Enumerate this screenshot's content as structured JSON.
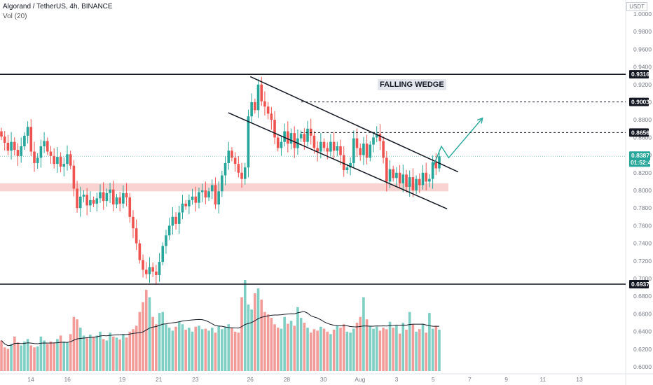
{
  "header": {
    "symbol_line": "Algorand / TetherUS, 4h, BINANCE",
    "volume_line": "Vol (20)"
  },
  "currency_label": "USDT",
  "annotation": "FALLING WEDGE",
  "colors": {
    "bull": "#26a69a",
    "bear": "#ef5350",
    "bull_volume": "#7fcfc5",
    "bear_volume": "#f29c9a",
    "support_zone": "#f8c8c6",
    "projection": "#26a69a",
    "current_price": "#26a69a",
    "level_tag": "#131722"
  },
  "chart_data": {
    "type": "candlestick",
    "pair": "ALGO/USDT",
    "y_axis": {
      "unit": "USDT",
      "ylim": [
        0.595,
        1.005
      ],
      "ticks": [
        "1.0000",
        "0.9800",
        "0.9600",
        "0.9400",
        "0.9200",
        "0.9000",
        "0.8800",
        "0.8600",
        "0.8400",
        "0.8200",
        "0.8000",
        "0.7800",
        "0.7600",
        "0.7400",
        "0.7200",
        "0.7000",
        "0.6800",
        "0.6600",
        "0.6400",
        "0.6200",
        "0.6000"
      ]
    },
    "x_axis": {
      "ticks": [
        "14",
        "16",
        "19",
        "21",
        "23",
        "26",
        "28",
        "30",
        "Aug",
        "3",
        "5",
        "7",
        "9",
        "11",
        "13"
      ]
    },
    "horizontal_levels": [
      {
        "price": 0.9316,
        "label": "0.9316",
        "style": "solid"
      },
      {
        "price": 0.9003,
        "label": "0.9003",
        "style": "dashed"
      },
      {
        "price": 0.8656,
        "label": "0.8656",
        "style": "dashed"
      },
      {
        "price": 0.6937,
        "label": "0.6937",
        "style": "solid"
      }
    ],
    "current_price": {
      "price": 0.8387,
      "label": "0.8387",
      "countdown": "01:52:43"
    },
    "support_zone": [
      0.799,
      0.808
    ],
    "wedge": {
      "upper": [
        [
          26.0,
          0.929
        ],
        [
          5.6,
          0.821
        ]
      ],
      "lower": [
        [
          24.8,
          0.888
        ],
        [
          5.0,
          0.779
        ]
      ]
    },
    "projection": [
      [
        5.0,
        0.827
      ],
      [
        5.45,
        0.85
      ],
      [
        5.85,
        0.837
      ],
      [
        7.7,
        0.882
      ]
    ],
    "closes": [
      0.861,
      0.854,
      0.845,
      0.855,
      0.846,
      0.839,
      0.85,
      0.862,
      0.872,
      0.844,
      0.831,
      0.837,
      0.85,
      0.856,
      0.844,
      0.839,
      0.83,
      0.838,
      0.827,
      0.83,
      0.841,
      0.828,
      0.802,
      0.78,
      0.793,
      0.795,
      0.783,
      0.789,
      0.785,
      0.791,
      0.798,
      0.788,
      0.797,
      0.801,
      0.784,
      0.792,
      0.785,
      0.797,
      0.792,
      0.77,
      0.757,
      0.74,
      0.721,
      0.71,
      0.705,
      0.713,
      0.708,
      0.704,
      0.719,
      0.737,
      0.749,
      0.76,
      0.77,
      0.762,
      0.775,
      0.785,
      0.782,
      0.789,
      0.793,
      0.786,
      0.798,
      0.8,
      0.792,
      0.799,
      0.806,
      0.784,
      0.799,
      0.817,
      0.831,
      0.845,
      0.837,
      0.83,
      0.82,
      0.813,
      0.826,
      0.884,
      0.9,
      0.891,
      0.92,
      0.901,
      0.895,
      0.887,
      0.88,
      0.86,
      0.848,
      0.855,
      0.867,
      0.853,
      0.865,
      0.848,
      0.859,
      0.864,
      0.855,
      0.87,
      0.862,
      0.848,
      0.844,
      0.855,
      0.848,
      0.844,
      0.855,
      0.845,
      0.85,
      0.84,
      0.823,
      0.826,
      0.831,
      0.859,
      0.848,
      0.84,
      0.853,
      0.837,
      0.852,
      0.86,
      0.864,
      0.856,
      0.837,
      0.81,
      0.824,
      0.814,
      0.82,
      0.808,
      0.818,
      0.804,
      0.815,
      0.8,
      0.813,
      0.806,
      0.82,
      0.81,
      0.813,
      0.832,
      0.825,
      0.8387
    ],
    "opens_note": "each candle opens at the previous close",
    "volume": [
      62,
      48,
      45,
      55,
      70,
      58,
      52,
      60,
      65,
      52,
      48,
      50,
      70,
      62,
      55,
      60,
      58,
      65,
      72,
      60,
      58,
      75,
      110,
      105,
      88,
      72,
      68,
      74,
      70,
      72,
      80,
      65,
      62,
      78,
      70,
      68,
      64,
      74,
      68,
      80,
      85,
      92,
      120,
      140,
      165,
      150,
      110,
      95,
      118,
      120,
      95,
      88,
      82,
      90,
      100,
      95,
      84,
      88,
      80,
      90,
      92,
      85,
      86,
      82,
      88,
      78,
      92,
      85,
      90,
      95,
      88,
      80,
      78,
      150,
      185,
      135,
      125,
      158,
      168,
      145,
      120,
      115,
      108,
      95,
      88,
      86,
      110,
      96,
      102,
      92,
      130,
      108,
      98,
      88,
      78,
      85,
      82,
      90,
      86,
      80,
      75,
      84,
      92,
      88,
      95,
      80,
      78,
      86,
      98,
      110,
      150,
      105,
      92,
      86,
      90,
      82,
      88,
      85,
      100,
      88,
      92,
      76,
      98,
      84,
      120,
      95,
      80,
      85,
      96,
      78,
      118,
      86,
      92,
      84
    ]
  }
}
